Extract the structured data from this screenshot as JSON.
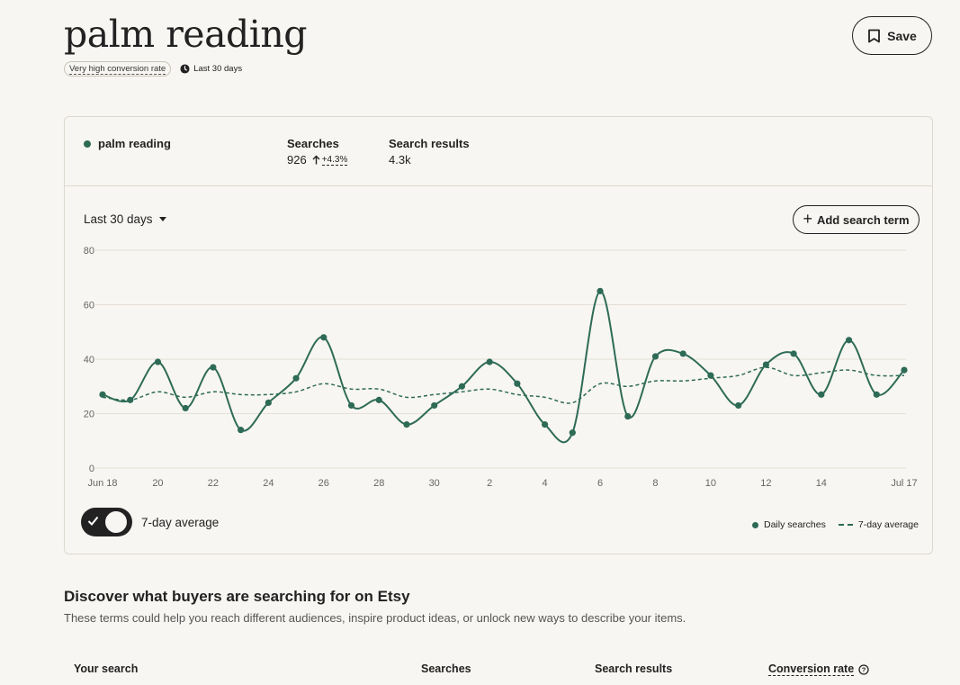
{
  "header": {
    "title": "palm reading",
    "conversion_badge": "Very high conversion rate",
    "period": "Last 30 days",
    "save_label": "Save"
  },
  "summary": {
    "term": "palm reading",
    "searches_label": "Searches",
    "searches_value": "926",
    "searches_change": "+4.3%",
    "results_label": "Search results",
    "results_value": "4.3k"
  },
  "controls": {
    "period_select": "Last 30 days",
    "add_term_label": "Add search term",
    "toggle_label": "7-day average",
    "toggle_on": true
  },
  "chart_data": {
    "type": "line",
    "ylim": [
      0,
      80
    ],
    "yticks": [
      0,
      20,
      40,
      60,
      80
    ],
    "x_tick_labels": [
      "Jun 18",
      "20",
      "22",
      "24",
      "26",
      "28",
      "30",
      "2",
      "4",
      "6",
      "8",
      "10",
      "12",
      "14",
      "Jul 17"
    ],
    "x_tick_days": [
      0,
      2,
      4,
      6,
      8,
      10,
      12,
      14,
      16,
      18,
      20,
      22,
      24,
      26,
      29
    ],
    "series": [
      {
        "name": "Daily searches",
        "style": "solid-with-points",
        "values": [
          27,
          25,
          39,
          22,
          37,
          14,
          24,
          33,
          48,
          23,
          25,
          16,
          23,
          30,
          39,
          31,
          16,
          13,
          65,
          19,
          41,
          42,
          34,
          23,
          38,
          42,
          27,
          47,
          27,
          36
        ]
      },
      {
        "name": "7-day average",
        "style": "dashed",
        "values": [
          26,
          25,
          28,
          26,
          28,
          27,
          27,
          28,
          31,
          29,
          29,
          26,
          27,
          28,
          29,
          27,
          26,
          24,
          31,
          30,
          32,
          32,
          33,
          34,
          37,
          34,
          35,
          36,
          34,
          34
        ]
      }
    ],
    "legend": [
      "Daily searches",
      "7-day average"
    ],
    "legend_position": "bottom-right",
    "grid": true,
    "colors": {
      "line": "#2e6b57",
      "grid": "#e4e0d8"
    }
  },
  "discover": {
    "title": "Discover what buyers are searching for on Etsy",
    "subtitle": "These terms could help you reach different audiences, inspire product ideas, or unlock new ways to describe your items.",
    "columns": [
      "Your search",
      "Searches",
      "Search results",
      "Conversion rate"
    ]
  }
}
